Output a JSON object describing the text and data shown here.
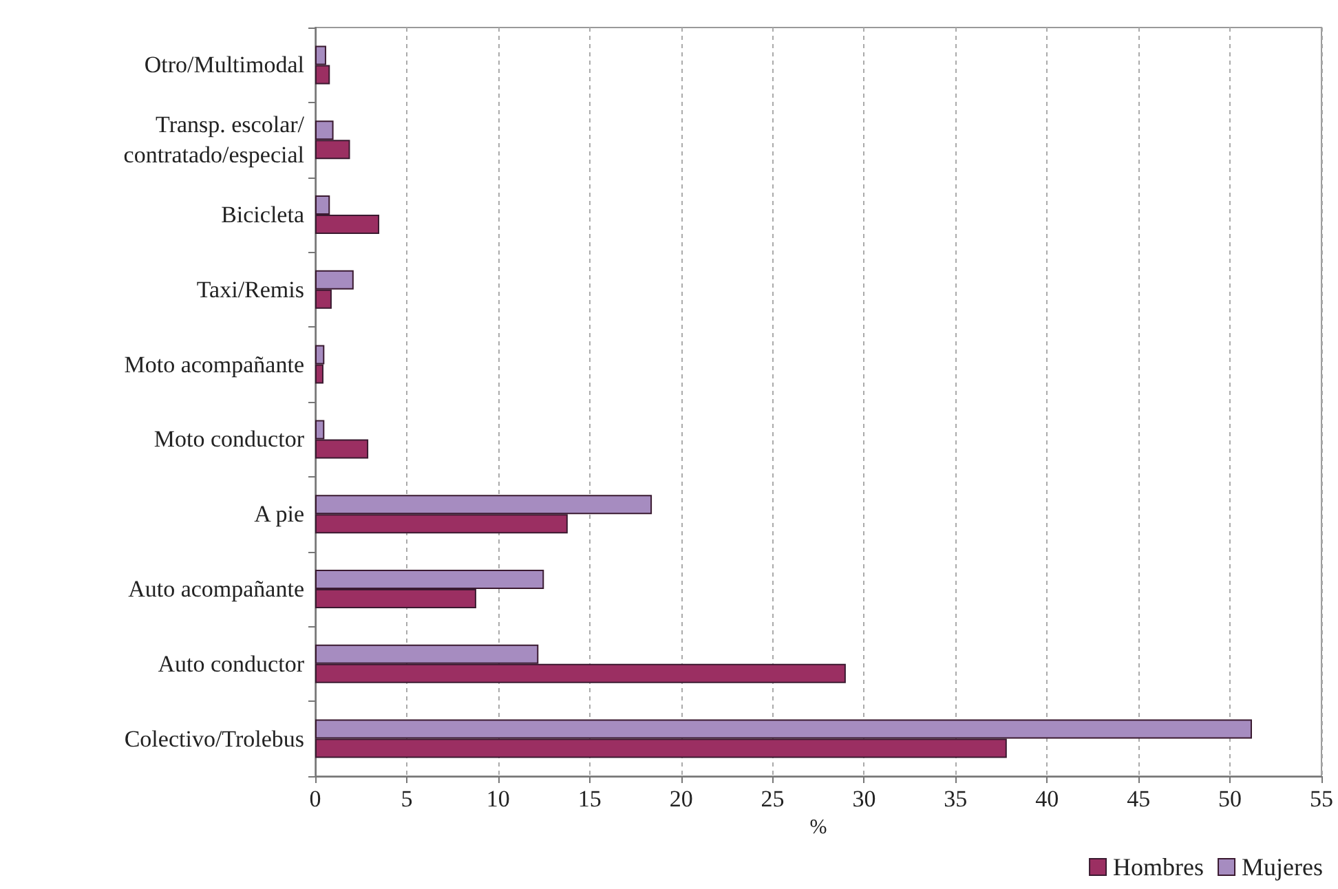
{
  "chart_data": {
    "type": "bar",
    "orientation": "horizontal",
    "xlabel": "%",
    "categories": [
      "Otro/Multimodal",
      "Transp. escolar/\ncontratado/especial",
      "Bicicleta",
      "Taxi/Remis",
      "Moto acompañante",
      "Moto conductor",
      "A pie",
      "Auto acompañante",
      "Auto conductor",
      "Colectivo/Trolebus"
    ],
    "series": [
      {
        "name": "Hombres",
        "color": "#9b2f62",
        "values": [
          0.8,
          1.9,
          3.5,
          0.9,
          0.45,
          2.9,
          13.8,
          8.8,
          29.0,
          37.8
        ]
      },
      {
        "name": "Mujeres",
        "color": "#a68cc0",
        "values": [
          0.6,
          1.0,
          0.8,
          2.1,
          0.5,
          0.5,
          18.4,
          12.5,
          12.2,
          51.2
        ]
      }
    ],
    "xlim": [
      0,
      55
    ],
    "xticks": [
      0,
      5,
      10,
      15,
      20,
      25,
      30,
      35,
      40,
      45,
      50,
      55
    ],
    "grid": "x",
    "legend": "bottom right"
  }
}
